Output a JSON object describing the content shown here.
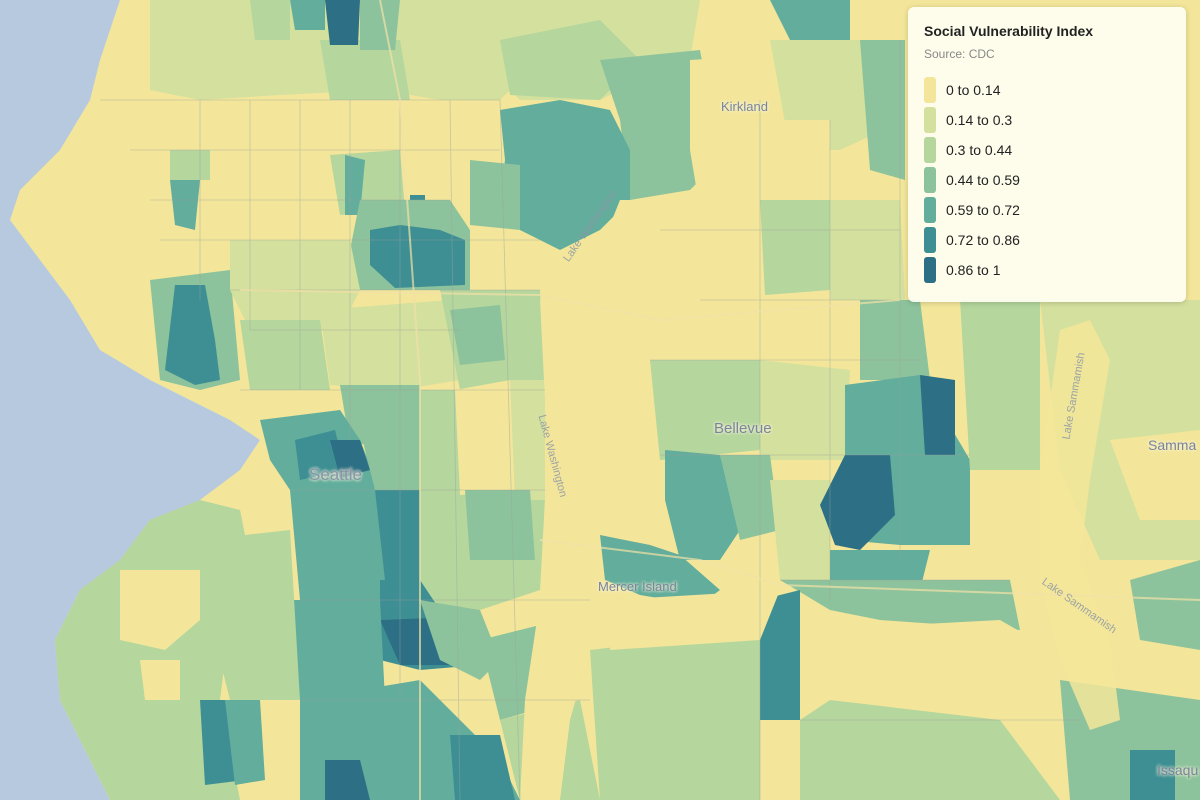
{
  "legend": {
    "title": "Social Vulnerability Index",
    "source": "Source: CDC",
    "items": [
      {
        "label": "0 to 0.14",
        "color": "#f3e69a"
      },
      {
        "label": "0.14 to 0.3",
        "color": "#d4e09d"
      },
      {
        "label": "0.3 to 0.44",
        "color": "#b5d69d"
      },
      {
        "label": "0.44 to 0.59",
        "color": "#8dc39c"
      },
      {
        "label": "0.59 to 0.72",
        "color": "#62ad9c"
      },
      {
        "label": "0.72 to 0.86",
        "color": "#3e8f93"
      },
      {
        "label": "0.86 to 1",
        "color": "#2d6f84"
      }
    ]
  },
  "places": {
    "seattle": "Seattle",
    "bellevue": "Bellevue",
    "kirkland": "Kirkland",
    "mercer_island": "Mercer Island",
    "sammamish": "Samma",
    "issaquah": "Issaqu"
  },
  "water": {
    "lake_washington_north": "Lake Washington",
    "lake_washington_south": "Lake Washington",
    "lake_sammamish_north": "Lake Sammamish",
    "lake_sammamish_south": "Lake Sammamish"
  },
  "colors": {
    "puget_sound": "#b7c9df",
    "land_base": "#f3e69a"
  }
}
